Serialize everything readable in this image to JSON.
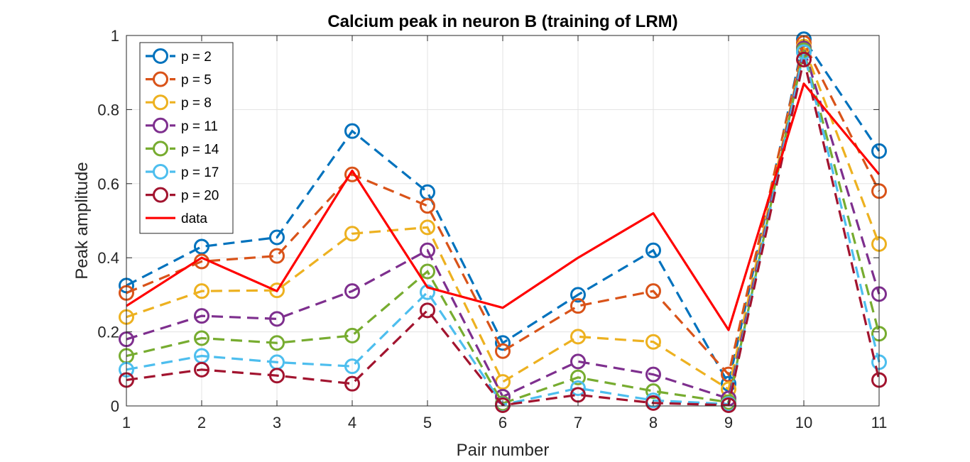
{
  "chart_data": {
    "type": "line",
    "title": "Calcium peak in neuron B (training of LRM)",
    "xlabel": "Pair number",
    "ylabel": "Peak amplitude",
    "x": [
      1,
      2,
      3,
      4,
      5,
      6,
      7,
      8,
      9,
      10,
      11
    ],
    "xlim": [
      1,
      11
    ],
    "ylim": [
      0,
      1
    ],
    "xticks": [
      "1",
      "2",
      "3",
      "4",
      "5",
      "6",
      "7",
      "8",
      "9",
      "10",
      "11"
    ],
    "yticks": [
      "0",
      "0.2",
      "0.4",
      "0.6",
      "0.8",
      "1"
    ],
    "grid": true,
    "legend_position": "top-left",
    "series": [
      {
        "name": "p = 2",
        "color": "#0072BD",
        "style": "dashed-circle",
        "values": [
          0.325,
          0.43,
          0.455,
          0.742,
          0.577,
          0.17,
          0.3,
          0.42,
          0.06,
          0.99,
          0.688
        ]
      },
      {
        "name": "p = 5",
        "color": "#D95319",
        "style": "dashed-circle",
        "values": [
          0.305,
          0.39,
          0.405,
          0.625,
          0.54,
          0.148,
          0.27,
          0.31,
          0.085,
          0.98,
          0.58
        ]
      },
      {
        "name": "p = 8",
        "color": "#EDB120",
        "style": "dashed-circle",
        "values": [
          0.24,
          0.31,
          0.312,
          0.465,
          0.482,
          0.065,
          0.187,
          0.173,
          0.045,
          0.97,
          0.437
        ]
      },
      {
        "name": "p = 11",
        "color": "#7E2F8E",
        "style": "dashed-circle",
        "values": [
          0.18,
          0.243,
          0.235,
          0.31,
          0.42,
          0.025,
          0.12,
          0.085,
          0.02,
          0.965,
          0.302
        ]
      },
      {
        "name": "p = 14",
        "color": "#77AC30",
        "style": "dashed-circle",
        "values": [
          0.135,
          0.183,
          0.17,
          0.19,
          0.363,
          0.007,
          0.077,
          0.04,
          0.01,
          0.96,
          0.195
        ]
      },
      {
        "name": "p = 17",
        "color": "#4DBEEE",
        "style": "dashed-circle",
        "values": [
          0.098,
          0.135,
          0.118,
          0.107,
          0.307,
          0.003,
          0.048,
          0.015,
          0.005,
          0.955,
          0.118
        ]
      },
      {
        "name": "p = 20",
        "color": "#A2142F",
        "style": "dashed-circle",
        "values": [
          0.07,
          0.098,
          0.082,
          0.06,
          0.258,
          0.002,
          0.03,
          0.008,
          0.002,
          0.935,
          0.07
        ]
      },
      {
        "name": "data",
        "color": "#FF0000",
        "style": "solid",
        "values": [
          0.27,
          0.4,
          0.31,
          0.635,
          0.32,
          0.265,
          0.4,
          0.52,
          0.205,
          0.87,
          0.625
        ]
      }
    ]
  }
}
